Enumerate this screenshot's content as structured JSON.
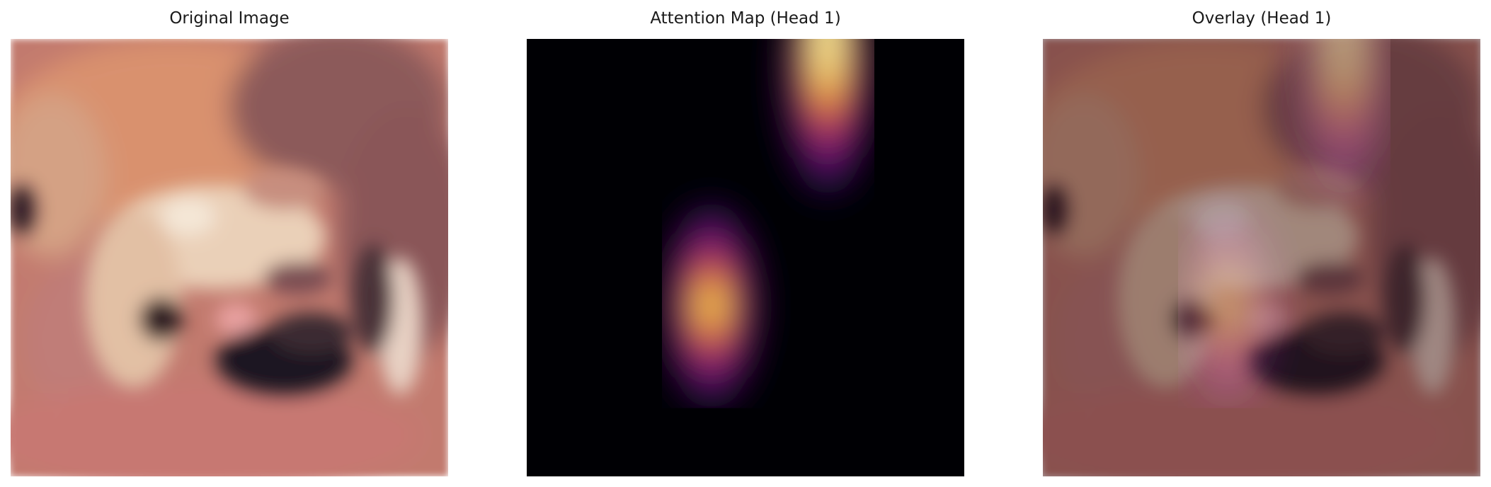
{
  "panels": [
    {
      "title": "Original Image"
    },
    {
      "title": "Attention Map (Head 1)"
    },
    {
      "title": "Overlay (Head 1)"
    }
  ],
  "colors": {
    "background": "#ffffff",
    "title_text": "#1a1a1a",
    "attention_colormap": "inferno"
  }
}
